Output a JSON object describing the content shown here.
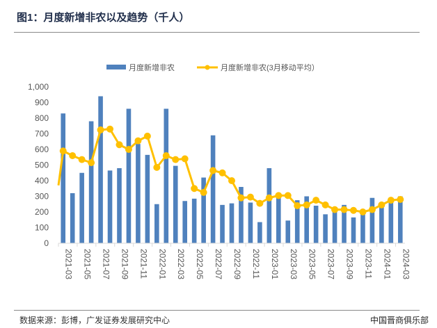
{
  "header": {
    "title": "图1：月度新增非农以及趋势（千人）"
  },
  "footer": {
    "source": "数据来源：彭博，广发证券发展研究中心",
    "brand": "中国晋商俱乐部"
  },
  "chart_data": {
    "type": "bar+line",
    "title": "",
    "xlabel": "",
    "ylabel": "",
    "ylim": [
      0,
      1000
    ],
    "yticks": [
      0,
      100,
      200,
      300,
      400,
      500,
      600,
      700,
      800,
      900,
      1000
    ],
    "ytick_labels": [
      "0",
      "100",
      "200",
      "300",
      "400",
      "500",
      "600",
      "700",
      "800",
      "900",
      "1,000"
    ],
    "legend_position": "top",
    "grid": false,
    "categories": [
      "2021-03",
      "2021-04",
      "2021-05",
      "2021-06",
      "2021-07",
      "2021-08",
      "2021-09",
      "2021-10",
      "2021-11",
      "2021-12",
      "2022-01",
      "2022-02",
      "2022-03",
      "2022-04",
      "2022-05",
      "2022-06",
      "2022-07",
      "2022-08",
      "2022-09",
      "2022-10",
      "2022-11",
      "2022-12",
      "2023-01",
      "2023-02",
      "2023-03",
      "2023-04",
      "2023-05",
      "2023-06",
      "2023-07",
      "2023-08",
      "2023-09",
      "2023-10",
      "2023-11",
      "2023-12",
      "2024-01",
      "2024-02",
      "2024-03"
    ],
    "xtick_labels": [
      "2021-03",
      "2021-05",
      "2021-07",
      "2021-09",
      "2021-11",
      "2022-01",
      "2022-03",
      "2022-05",
      "2022-07",
      "2022-09",
      "2022-11",
      "2023-01",
      "2023-03",
      "2023-05",
      "2023-07",
      "2023-09",
      "2023-11",
      "2024-01",
      "2024-03"
    ],
    "series": [
      {
        "name": "月度新增非农",
        "type": "bar",
        "color": "#4f81bd",
        "values": [
          830,
          320,
          450,
          780,
          940,
          465,
          480,
          860,
          635,
          565,
          250,
          860,
          495,
          270,
          285,
          420,
          690,
          245,
          255,
          360,
          260,
          135,
          480,
          290,
          145,
          275,
          300,
          240,
          185,
          210,
          245,
          165,
          185,
          290,
          230,
          270,
          300
        ]
      },
      {
        "name": "月度新增非农(3月移动平均）",
        "type": "line",
        "color": "#ffc000",
        "values": [
          590,
          560,
          535,
          515,
          725,
          730,
          630,
          600,
          655,
          685,
          485,
          560,
          535,
          540,
          350,
          325,
          465,
          450,
          400,
          290,
          295,
          255,
          290,
          305,
          305,
          240,
          245,
          275,
          245,
          215,
          215,
          210,
          200,
          215,
          245,
          275,
          280
        ]
      }
    ]
  }
}
